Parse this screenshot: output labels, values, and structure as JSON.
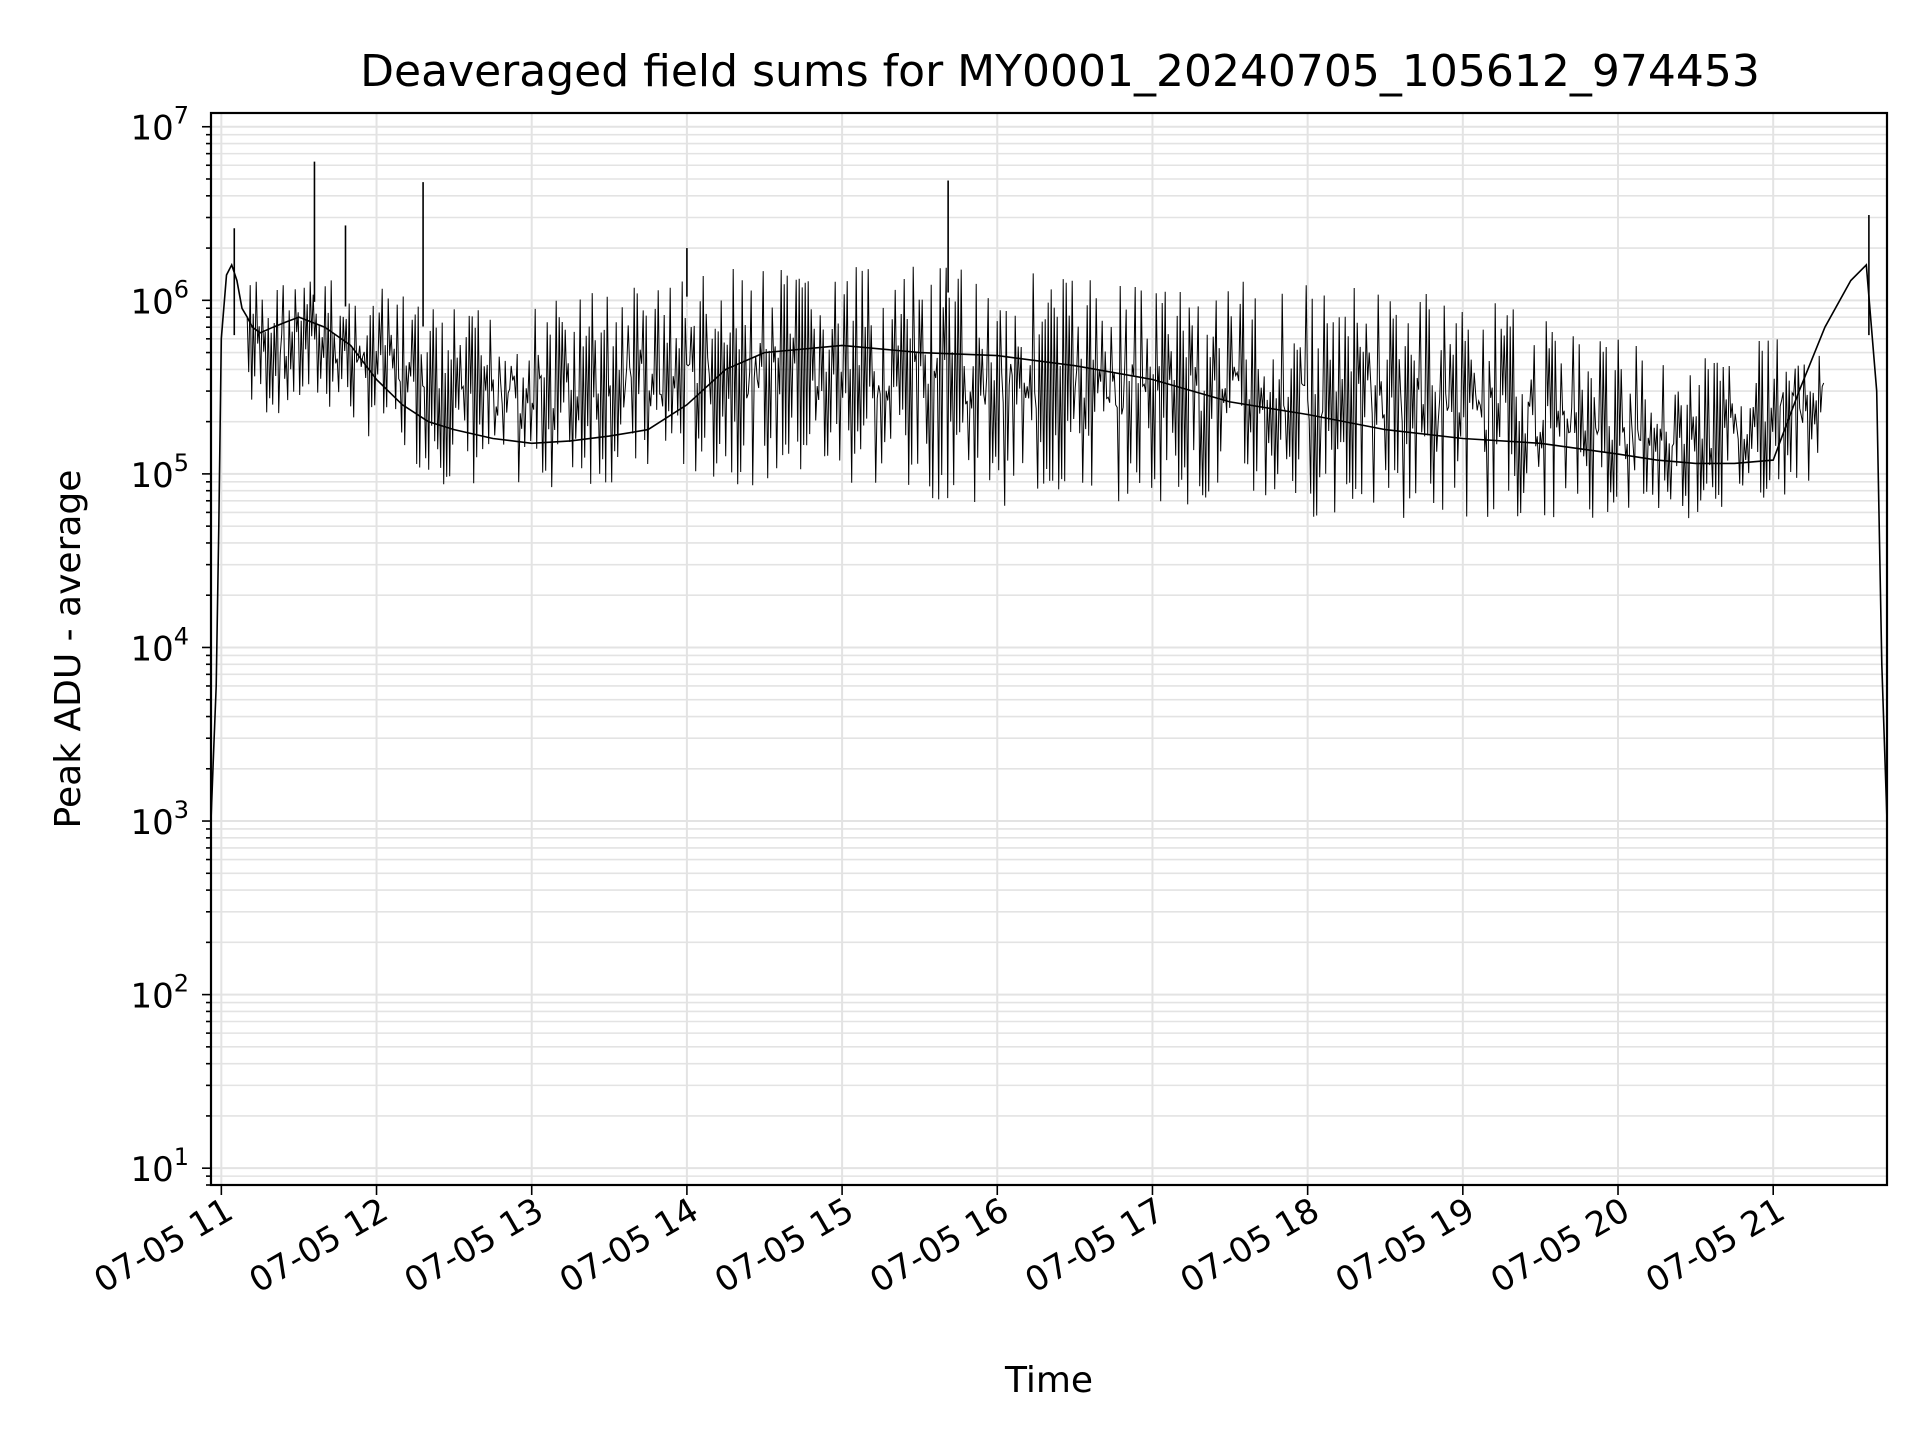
{
  "chart_data": {
    "type": "line",
    "title": "Deaveraged field sums for MY0001_20240705_105612_974453",
    "xlabel": "Time",
    "ylabel": "Peak ADU - average",
    "yscale": "log",
    "ylim": [
      8,
      12000000
    ],
    "xlim": [
      "2024-07-05 10:56",
      "2024-07-05 21:44"
    ],
    "grid": true,
    "series_color": "#000000",
    "x_ticks": [
      "2024-07-05 11:00",
      "2024-07-05 12:00",
      "2024-07-05 13:00",
      "2024-07-05 14:00",
      "2024-07-05 15:00",
      "2024-07-05 16:00",
      "2024-07-05 17:00",
      "2024-07-05 18:00",
      "2024-07-05 19:00",
      "2024-07-05 20:00",
      "2024-07-05 21:00"
    ],
    "x_tick_labels": [
      "07-05 11",
      "07-05 12",
      "07-05 13",
      "07-05 14",
      "07-05 15",
      "07-05 16",
      "07-05 17",
      "07-05 18",
      "07-05 19",
      "07-05 20",
      "07-05 21"
    ],
    "y_ticks": [
      10,
      100,
      1000,
      10000,
      100000,
      1000000,
      10000000
    ],
    "y_tick_labels": [
      {
        "base": "10",
        "exp": "1"
      },
      {
        "base": "10",
        "exp": "2"
      },
      {
        "base": "10",
        "exp": "3"
      },
      {
        "base": "10",
        "exp": "4"
      },
      {
        "base": "10",
        "exp": "5"
      },
      {
        "base": "10",
        "exp": "6"
      },
      {
        "base": "10",
        "exp": "7"
      }
    ],
    "series": [
      {
        "x": [
          "2024-07-05 10:56",
          "2024-07-05 10:57",
          "2024-07-05 10:58",
          "2024-07-05 10:59",
          "2024-07-05 11:00",
          "2024-07-05 11:02",
          "2024-07-05 11:04",
          "2024-07-05 11:06",
          "2024-07-05 11:08",
          "2024-07-05 11:10",
          "2024-07-05 11:12",
          "2024-07-05 11:15",
          "2024-07-05 11:20",
          "2024-07-05 11:25",
          "2024-07-05 11:30",
          "2024-07-05 11:40",
          "2024-07-05 11:50",
          "2024-07-05 12:00",
          "2024-07-05 12:10",
          "2024-07-05 12:20",
          "2024-07-05 12:30",
          "2024-07-05 12:45",
          "2024-07-05 13:00",
          "2024-07-05 13:15",
          "2024-07-05 13:30",
          "2024-07-05 13:45",
          "2024-07-05 14:00",
          "2024-07-05 14:15",
          "2024-07-05 14:30",
          "2024-07-05 15:00",
          "2024-07-05 15:30",
          "2024-07-05 16:00",
          "2024-07-05 16:30",
          "2024-07-05 17:00",
          "2024-07-05 17:30",
          "2024-07-05 18:00",
          "2024-07-05 18:30",
          "2024-07-05 19:00",
          "2024-07-05 19:30",
          "2024-07-05 20:00",
          "2024-07-05 20:15",
          "2024-07-05 20:30",
          "2024-07-05 20:45",
          "2024-07-05 21:00",
          "2024-07-05 21:10",
          "2024-07-05 21:20",
          "2024-07-05 21:30",
          "2024-07-05 21:36",
          "2024-07-05 21:40",
          "2024-07-05 21:42",
          "2024-07-05 21:44"
        ],
        "y": [
          1000,
          2500,
          6000,
          50000,
          600000,
          1400000,
          1600000,
          1300000,
          900000,
          800000,
          700000,
          650000,
          700000,
          750000,
          800000,
          700000,
          550000,
          350000,
          250000,
          200000,
          180000,
          160000,
          150000,
          155000,
          165000,
          180000,
          250000,
          400000,
          500000,
          550000,
          500000,
          480000,
          420000,
          350000,
          260000,
          220000,
          180000,
          160000,
          150000,
          130000,
          120000,
          115000,
          115000,
          120000,
          300000,
          700000,
          1300000,
          1600000,
          300000,
          8000,
          1000
        ],
        "spikes": [
          {
            "x": "2024-07-05 11:05",
            "y": 2600000
          },
          {
            "x": "2024-07-05 11:36",
            "y": 6300000
          },
          {
            "x": "2024-07-05 11:48",
            "y": 2700000
          },
          {
            "x": "2024-07-05 12:18",
            "y": 4800000
          },
          {
            "x": "2024-07-05 14:00",
            "y": 2000000
          },
          {
            "x": "2024-07-05 15:41",
            "y": 4900000
          },
          {
            "x": "2024-07-05 21:37",
            "y": 3100000
          }
        ],
        "band_max": [
          {
            "x": "2024-07-05 11:10",
            "y": 1400000
          },
          {
            "x": "2024-07-05 11:40",
            "y": 1400000
          },
          {
            "x": "2024-07-05 12:00",
            "y": 1200000
          },
          {
            "x": "2024-07-05 12:30",
            "y": 900000
          },
          {
            "x": "2024-07-05 13:00",
            "y": 950000
          },
          {
            "x": "2024-07-05 13:30",
            "y": 1300000
          },
          {
            "x": "2024-07-05 14:00",
            "y": 1500000
          },
          {
            "x": "2024-07-05 15:00",
            "y": 1550000
          },
          {
            "x": "2024-07-05 16:00",
            "y": 1600000
          },
          {
            "x": "2024-07-05 17:00",
            "y": 1400000
          },
          {
            "x": "2024-07-05 18:00",
            "y": 1300000
          },
          {
            "x": "2024-07-05 19:00",
            "y": 1100000
          },
          {
            "x": "2024-07-05 20:00",
            "y": 600000
          },
          {
            "x": "2024-07-05 20:30",
            "y": 450000
          },
          {
            "x": "2024-07-05 21:00",
            "y": 700000
          },
          {
            "x": "2024-07-05 21:20",
            "y": 900000
          }
        ],
        "band_min": [
          {
            "x": "2024-07-05 11:10",
            "y": 200000
          },
          {
            "x": "2024-07-05 11:40",
            "y": 230000
          },
          {
            "x": "2024-07-05 12:00",
            "y": 150000
          },
          {
            "x": "2024-07-05 12:30",
            "y": 80000
          },
          {
            "x": "2024-07-05 13:00",
            "y": 80000
          },
          {
            "x": "2024-07-05 13:30",
            "y": 85000
          },
          {
            "x": "2024-07-05 14:00",
            "y": 90000
          },
          {
            "x": "2024-07-05 15:00",
            "y": 80000
          },
          {
            "x": "2024-07-05 16:00",
            "y": 65000
          },
          {
            "x": "2024-07-05 17:00",
            "y": 70000
          },
          {
            "x": "2024-07-05 18:00",
            "y": 55000
          },
          {
            "x": "2024-07-05 19:00",
            "y": 55000
          },
          {
            "x": "2024-07-05 20:00",
            "y": 55000
          },
          {
            "x": "2024-07-05 20:30",
            "y": 55000
          },
          {
            "x": "2024-07-05 21:00",
            "y": 70000
          },
          {
            "x": "2024-07-05 21:20",
            "y": 100000
          }
        ]
      }
    ]
  }
}
